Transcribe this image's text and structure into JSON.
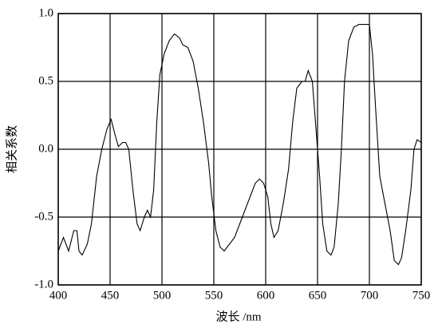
{
  "chart_data": {
    "type": "line",
    "x_label": "波长 /nm",
    "y_label": "相关系数",
    "xlim": [
      400,
      750
    ],
    "xticks": [
      400,
      450,
      500,
      550,
      600,
      650,
      700,
      750
    ],
    "ylim": [
      -1,
      1
    ],
    "yticks": [
      {
        "value": -1,
        "label": "-1.0"
      },
      -0.5,
      {
        "value": 0,
        "label": "0.0"
      },
      0.5,
      {
        "value": 1,
        "label": "1.0"
      }
    ],
    "grid": true,
    "series": [
      {
        "color": "#000000",
        "x": [
          400,
          405,
          410,
          415,
          418,
          420,
          423,
          428,
          432,
          437,
          442,
          447,
          451,
          455,
          458,
          462,
          465,
          468,
          472,
          476,
          479,
          483,
          486,
          489,
          492,
          495,
          498,
          502,
          507,
          512,
          517,
          520,
          525,
          530,
          535,
          540,
          545,
          548,
          552,
          556,
          560,
          565,
          570,
          575,
          580,
          585,
          590,
          594,
          598,
          602,
          605,
          608,
          612,
          617,
          622,
          626,
          630,
          635,
          638,
          641,
          645,
          648,
          652,
          655,
          659,
          663,
          666,
          670,
          673,
          676,
          680,
          685,
          690,
          695,
          700,
          703,
          706,
          710,
          715,
          720,
          724,
          728,
          731,
          735,
          740,
          743,
          746,
          750
        ],
        "values": [
          -0.75,
          -0.65,
          -0.75,
          -0.6,
          -0.6,
          -0.75,
          -0.78,
          -0.7,
          -0.55,
          -0.2,
          0.0,
          0.15,
          0.22,
          0.1,
          0.02,
          0.05,
          0.05,
          0.0,
          -0.3,
          -0.55,
          -0.6,
          -0.5,
          -0.45,
          -0.5,
          -0.3,
          0.2,
          0.55,
          0.7,
          0.8,
          0.85,
          0.82,
          0.77,
          0.75,
          0.65,
          0.45,
          0.2,
          -0.1,
          -0.35,
          -0.6,
          -0.72,
          -0.75,
          -0.7,
          -0.65,
          -0.55,
          -0.45,
          -0.35,
          -0.25,
          -0.22,
          -0.25,
          -0.35,
          -0.55,
          -0.65,
          -0.6,
          -0.4,
          -0.15,
          0.2,
          0.45,
          0.5,
          0.5,
          0.58,
          0.5,
          0.2,
          -0.2,
          -0.55,
          -0.75,
          -0.78,
          -0.72,
          -0.4,
          0.0,
          0.5,
          0.8,
          0.9,
          0.92,
          0.92,
          0.92,
          0.7,
          0.3,
          -0.2,
          -0.4,
          -0.6,
          -0.82,
          -0.85,
          -0.8,
          -0.6,
          -0.3,
          0.0,
          0.07,
          0.05
        ]
      }
    ]
  }
}
